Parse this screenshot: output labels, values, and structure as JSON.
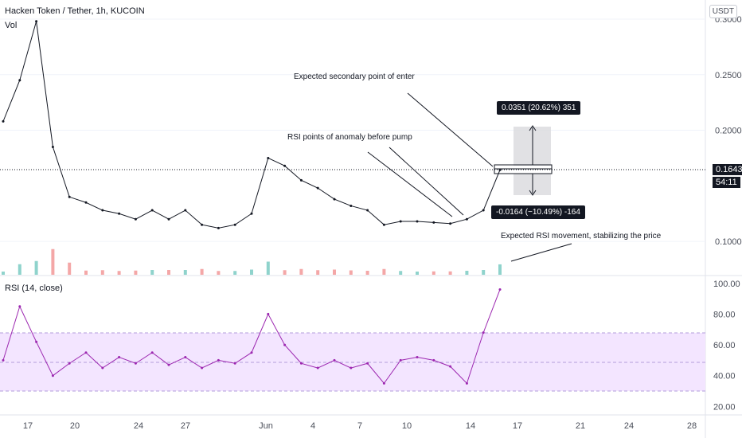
{
  "header": {
    "symbol_title": "Hacken Token / Tether, 1h, KUCOIN",
    "volume_label": "Vol",
    "currency": "USDT"
  },
  "price_pane": {
    "yticks": [
      "0.3000",
      "0.2500",
      "0.2000",
      "0.1000"
    ],
    "last_price": "0.1643",
    "countdown": "54:11"
  },
  "rsi_pane": {
    "title": "RSI (14, close)",
    "yticks": [
      "100.00",
      "80.00",
      "60.00",
      "40.00",
      "20.00"
    ],
    "band_upper": 70,
    "band_lower": 30,
    "band_mid": 50,
    "band_color": "#f3e5ff",
    "line_color": "#9c27b0"
  },
  "x_axis": {
    "ticks": [
      "17",
      "20",
      "24",
      "27",
      "Jun",
      "4",
      "7",
      "10",
      "14",
      "17",
      "21",
      "24",
      "28"
    ]
  },
  "annotations": {
    "secondary_entry": "Expected secondary point of enter",
    "rsi_anomaly": "RSI points of anomaly before pump",
    "rsi_movement": "Expected RSI movement, stabilizing the price",
    "upper_measure": "0.0351 (20.62%) 351",
    "lower_measure": "-0.0164 (−10.49%) -164"
  },
  "colors": {
    "candle": "#131722",
    "vol_up": "#8fd3cc",
    "vol_down": "#f4a7a7",
    "measure_fill": "#d9dadd",
    "grid": "#f0f3fa",
    "dotted_price": "#131722"
  },
  "chart_data": {
    "type": "line",
    "title": "Hacken Token / Tether, 1h, KUCOIN",
    "x_range": [
      "May 16",
      "Jun 15"
    ],
    "price_ylim": [
      0.07,
      0.31
    ],
    "price_series": [
      {
        "date": "May 16",
        "close": 0.208
      },
      {
        "date": "May 17",
        "close": 0.245
      },
      {
        "date": "May 18",
        "close": 0.298
      },
      {
        "date": "May 19",
        "close": 0.185
      },
      {
        "date": "May 20",
        "close": 0.14
      },
      {
        "date": "May 21",
        "close": 0.135
      },
      {
        "date": "May 22",
        "close": 0.128
      },
      {
        "date": "May 23",
        "close": 0.125
      },
      {
        "date": "May 24",
        "close": 0.12
      },
      {
        "date": "May 25",
        "close": 0.128
      },
      {
        "date": "May 26",
        "close": 0.12
      },
      {
        "date": "May 27",
        "close": 0.128
      },
      {
        "date": "May 28",
        "close": 0.115
      },
      {
        "date": "May 29",
        "close": 0.112
      },
      {
        "date": "May 30",
        "close": 0.115
      },
      {
        "date": "May 31",
        "close": 0.125
      },
      {
        "date": "Jun 1",
        "close": 0.175
      },
      {
        "date": "Jun 2",
        "close": 0.168
      },
      {
        "date": "Jun 3",
        "close": 0.155
      },
      {
        "date": "Jun 4",
        "close": 0.148
      },
      {
        "date": "Jun 5",
        "close": 0.138
      },
      {
        "date": "Jun 6",
        "close": 0.132
      },
      {
        "date": "Jun 7",
        "close": 0.128
      },
      {
        "date": "Jun 8",
        "close": 0.115
      },
      {
        "date": "Jun 9",
        "close": 0.118
      },
      {
        "date": "Jun 10",
        "close": 0.118
      },
      {
        "date": "Jun 11",
        "close": 0.117
      },
      {
        "date": "Jun 12",
        "close": 0.116
      },
      {
        "date": "Jun 13",
        "close": 0.12
      },
      {
        "date": "Jun 14",
        "close": 0.128
      },
      {
        "date": "Jun 15",
        "close": 0.1643
      }
    ],
    "rsi_ylim": [
      15,
      103
    ],
    "rsi_series": [
      {
        "date": "May 16",
        "rsi": 50
      },
      {
        "date": "May 17",
        "rsi": 85
      },
      {
        "date": "May 18",
        "rsi": 62
      },
      {
        "date": "May 19",
        "rsi": 40
      },
      {
        "date": "May 20",
        "rsi": 48
      },
      {
        "date": "May 21",
        "rsi": 55
      },
      {
        "date": "May 22",
        "rsi": 45
      },
      {
        "date": "May 23",
        "rsi": 52
      },
      {
        "date": "May 24",
        "rsi": 48
      },
      {
        "date": "May 25",
        "rsi": 55
      },
      {
        "date": "May 26",
        "rsi": 47
      },
      {
        "date": "May 27",
        "rsi": 52
      },
      {
        "date": "May 28",
        "rsi": 45
      },
      {
        "date": "May 29",
        "rsi": 50
      },
      {
        "date": "May 30",
        "rsi": 48
      },
      {
        "date": "May 31",
        "rsi": 55
      },
      {
        "date": "Jun 1",
        "rsi": 80
      },
      {
        "date": "Jun 2",
        "rsi": 60
      },
      {
        "date": "Jun 3",
        "rsi": 48
      },
      {
        "date": "Jun 4",
        "rsi": 45
      },
      {
        "date": "Jun 5",
        "rsi": 50
      },
      {
        "date": "Jun 6",
        "rsi": 45
      },
      {
        "date": "Jun 7",
        "rsi": 48
      },
      {
        "date": "Jun 8",
        "rsi": 35
      },
      {
        "date": "Jun 9",
        "rsi": 50
      },
      {
        "date": "Jun 10",
        "rsi": 52
      },
      {
        "date": "Jun 11",
        "rsi": 50
      },
      {
        "date": "Jun 12",
        "rsi": 46
      },
      {
        "date": "Jun 13",
        "rsi": 35
      },
      {
        "date": "Jun 14",
        "rsi": 68
      },
      {
        "date": "Jun 15",
        "rsi": 96
      }
    ],
    "volume_notes": "Volume histogram shown along bottom of price pane"
  }
}
